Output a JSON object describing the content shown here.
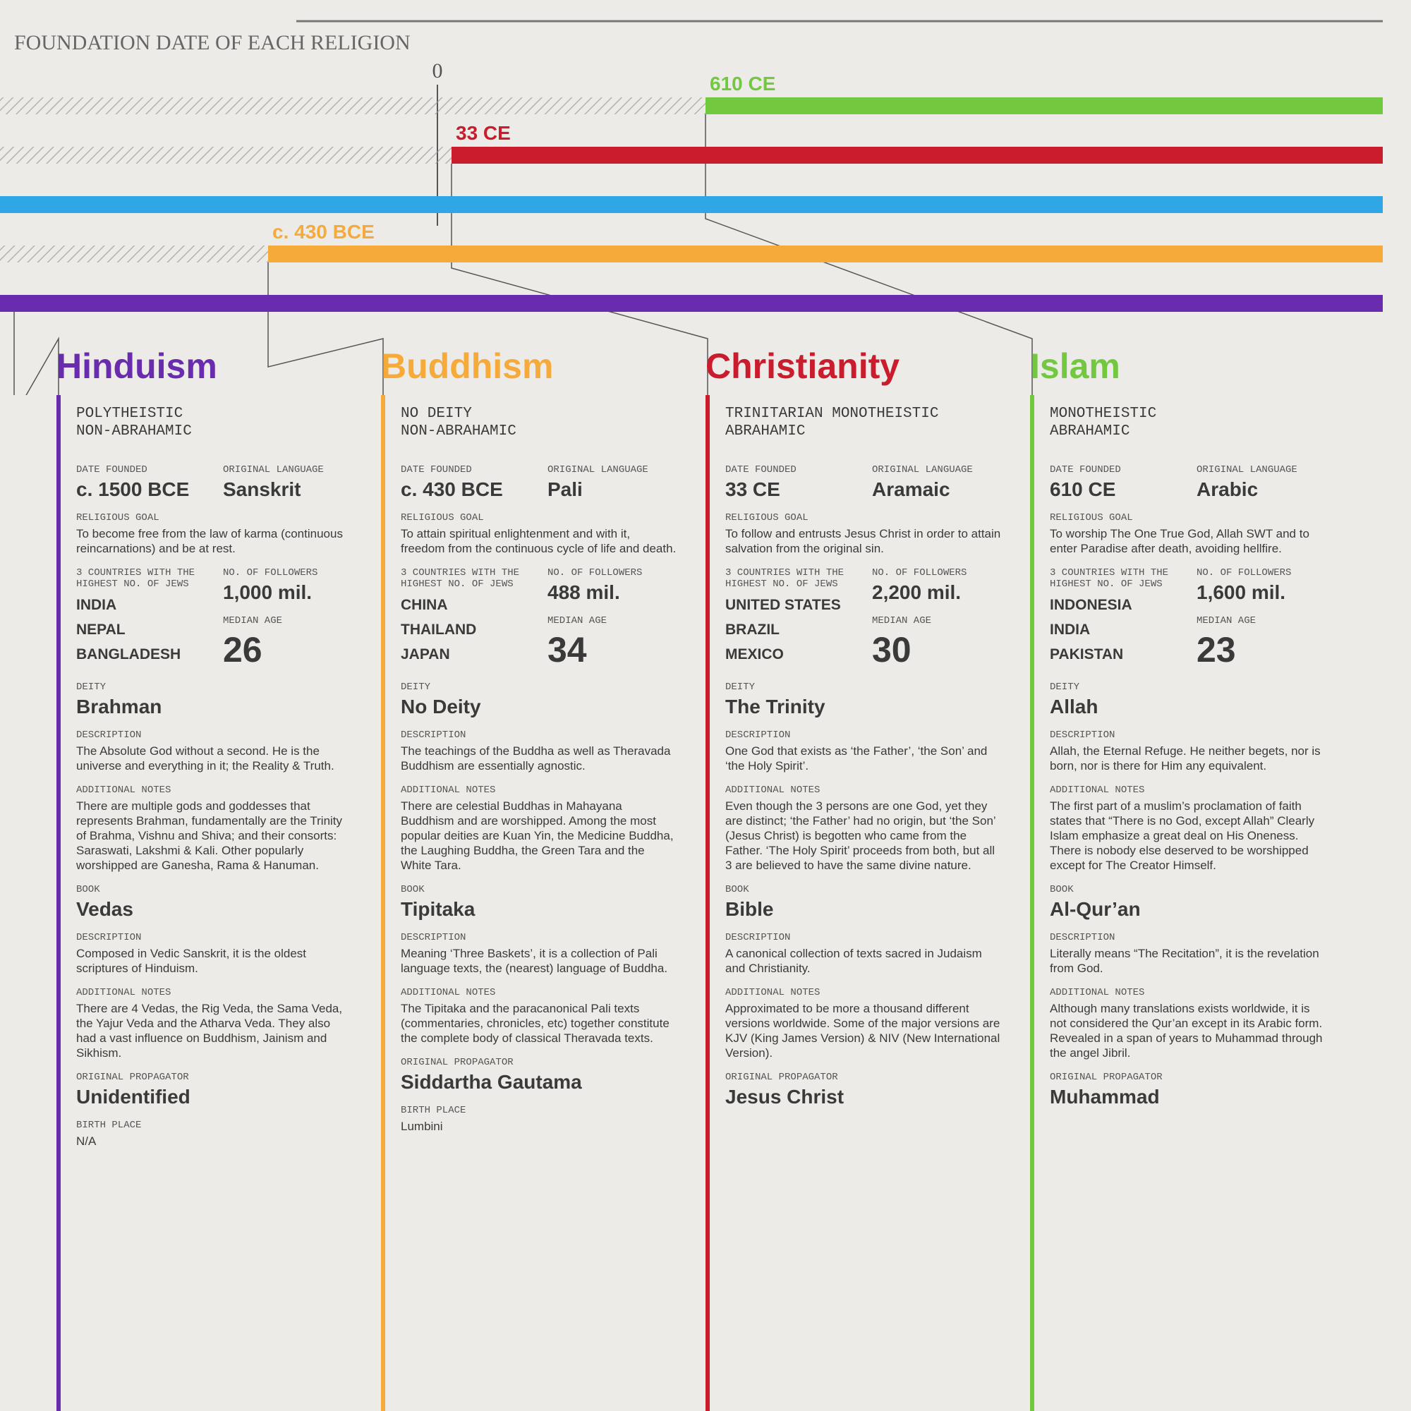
{
  "timeline": {
    "title": "FOUNDATION DATE OF EACH RELIGION",
    "zero": "0",
    "bars": [
      {
        "label": "610 CE",
        "color": "#72c83f"
      },
      {
        "label": "33 CE",
        "color": "#c91c2c"
      },
      {
        "color": "#2fa7e6"
      },
      {
        "label": "c. 430 BCE",
        "color": "#f6aa3a"
      },
      {
        "color": "#6a2cae"
      }
    ]
  },
  "labels": {
    "date": "DATE FOUNDED",
    "language": "ORIGINAL LANGUAGE",
    "goal": "RELIGIOUS GOAL",
    "countries": "3 COUNTRIES WITH THE HIGHEST NO. OF JEWS",
    "followers": "NO. OF FOLLOWERS",
    "age": "MEDIAN AGE",
    "deity": "DEITY",
    "description": "DESCRIPTION",
    "notes": "ADDITIONAL NOTES",
    "book": "BOOK",
    "propagator": "ORIGINAL PROPAGATOR",
    "birth": "BIRTH PLACE"
  },
  "religions": [
    {
      "name": "Hinduism",
      "color": "#6a2cae",
      "classification": [
        "POLYTHEISTIC",
        "NON-ABRAHAMIC"
      ],
      "date": "c. 1500 BCE",
      "language": "Sanskrit",
      "goal": "To become free from the law of karma (continuous reincarnations) and be at rest.",
      "countries": [
        "INDIA",
        "NEPAL",
        "BANGLADESH"
      ],
      "followers": "1,000 mil.",
      "median_age": 26,
      "deity": "Brahman",
      "description": "The Absolute God without a second. He is the universe and everything in it; the Reality & Truth.",
      "notes": "There are multiple gods and goddesses that represents Brahman, fundamentally are the Trinity of Brahma, Vishnu and Shiva; and their consorts: Saraswati, Lakshmi & Kali. Other popularly worshipped are Ganesha, Rama & Hanuman.",
      "book": "Vedas",
      "book_description": "Composed in Vedic Sanskrit, it is the oldest scriptures of Hinduism.",
      "book_notes": "There are 4 Vedas, the Rig Veda, the Sama Veda, the Yajur Veda and the Atharva Veda. They also had a vast influence on Buddhism, Jainism and Sikhism.",
      "propagator": "Unidentified",
      "birth_place": "N/A"
    },
    {
      "name": "Buddhism",
      "color": "#f6aa3a",
      "classification": [
        "NO DEITY",
        "NON-ABRAHAMIC"
      ],
      "date": "c. 430 BCE",
      "language": "Pali",
      "goal": "To attain spiritual enlightenment and with it, freedom from the continuous cycle of life and death.",
      "countries": [
        "CHINA",
        "THAILAND",
        "JAPAN"
      ],
      "followers": "488 mil.",
      "median_age": 34,
      "deity": "No Deity",
      "description": "The teachings of the Buddha as well as Theravada Buddhism are essentially agnostic.",
      "notes": "There are celestial Buddhas in Mahayana Buddhism and are worshipped. Among the most popular deities are Kuan Yin, the Medicine Buddha, the Laughing Buddha, the Green Tara and the White Tara.",
      "book": "Tipitaka",
      "book_description": "Meaning ‘Three Baskets’, it is a collection of Pali language texts, the (nearest) language of Buddha.",
      "book_notes": "The Tipitaka and the paracanonical Pali texts (commentaries, chronicles, etc) together constitute the complete body of classical Theravada texts.",
      "propagator": "Siddartha Gautama",
      "birth_place": "Lumbini"
    },
    {
      "name": "Christianity",
      "color": "#c91c2c",
      "classification": [
        "TRINITARIAN MONOTHEISTIC",
        "ABRAHAMIC"
      ],
      "date": "33 CE",
      "language": "Aramaic",
      "goal": "To follow and entrusts Jesus Christ in order to attain salvation from the original sin.",
      "countries": [
        "UNITED STATES",
        "BRAZIL",
        "MEXICO"
      ],
      "followers": "2,200 mil.",
      "median_age": 30,
      "deity": "The Trinity",
      "description": "One God that exists as ‘the Father’, ‘the Son’ and ‘the Holy Spirit’.",
      "notes": "Even though the 3 persons are one God, yet they are distinct; ‘the Father’ had no origin, but ‘the Son’ (Jesus Christ) is begotten who came from the Father. ‘The Holy Spirit’ proceeds from both, but all 3 are believed to have the same divine nature.",
      "book": "Bible",
      "book_description": "A canonical collection of texts sacred in Judaism and Christianity.",
      "book_notes": "Approximated to be more a thousand different versions worldwide. Some of the major versions are KJV (King James Version) & NIV (New International Version).",
      "propagator": "Jesus Christ"
    },
    {
      "name": "Islam",
      "color": "#72c83f",
      "classification": [
        "MONOTHEISTIC",
        "ABRAHAMIC"
      ],
      "date": "610 CE",
      "language": "Arabic",
      "goal": "To worship The One True God, Allah SWT and to enter Paradise after death, avoiding hellfire.",
      "countries": [
        "INDONESIA",
        "INDIA",
        "PAKISTAN"
      ],
      "followers": "1,600 mil.",
      "median_age": 23,
      "deity": "Allah",
      "description": "Allah, the Eternal Refuge. He neither begets, nor is born, nor is there for Him any equivalent.",
      "notes": "The first part of a muslim’s proclamation of faith states that “There is no God, except Allah” Clearly Islam emphasize a great deal on His Oneness. There is nobody else deserved to be worshipped except for The Creator Himself.",
      "book": "Al-Qur’an",
      "book_description": "Literally means “The Recitation”, it is the revelation from God.",
      "book_notes": "Although many translations exists worldwide, it is not considered the Qur’an except in its Arabic form. Revealed in a span of years to Muhammad through the angel Jibril.",
      "propagator": "Muhammad"
    }
  ]
}
